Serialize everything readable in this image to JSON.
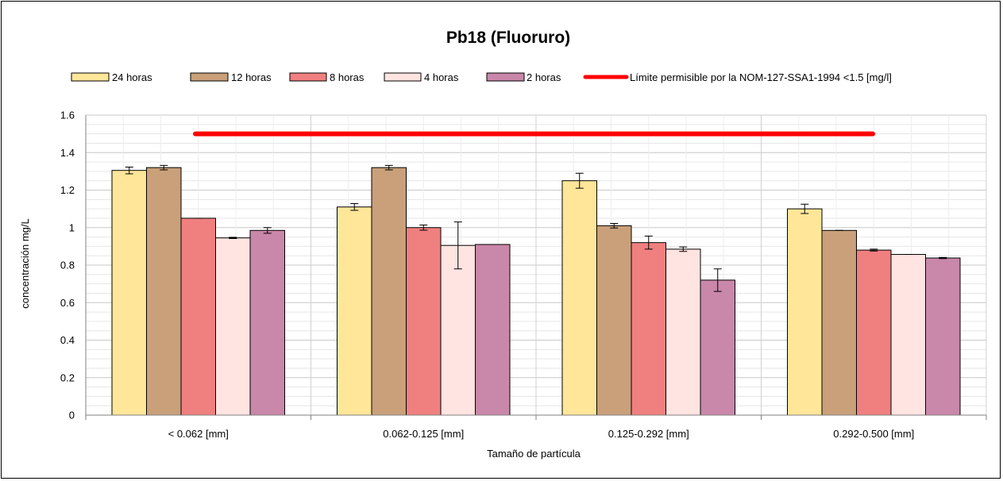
{
  "chart_data": {
    "type": "bar",
    "title": "Pb18 (Fluoruro)",
    "xlabel": "Tamaño de partícula",
    "ylabel": "concentración mg/L",
    "ylim": [
      0,
      1.6
    ],
    "yticks": [
      "0",
      "0.2",
      "0.4",
      "0.6",
      "0.8",
      "1",
      "1.2",
      "1.4",
      "1.6"
    ],
    "grid": true,
    "legend_position": "top",
    "categories": [
      "< 0.062 [mm]",
      "0.062-0.125 [mm]",
      "0.125-0.292 [mm]",
      "0.292-0.500 [mm]"
    ],
    "series": [
      {
        "name": "24 horas",
        "color": "#FFE699",
        "values": [
          1.305,
          1.11,
          1.25,
          1.1
        ],
        "errors": [
          0.018,
          0.018,
          0.04,
          0.025
        ]
      },
      {
        "name": "12 horas",
        "color": "#C9A07A",
        "values": [
          1.32,
          1.32,
          1.01,
          0.985
        ],
        "errors": [
          0.012,
          0.012,
          0.012,
          0.0
        ]
      },
      {
        "name": "8 horas",
        "color": "#F08080",
        "values": [
          1.05,
          1.0,
          0.92,
          0.88
        ],
        "errors": [
          0.0,
          0.014,
          0.035,
          0.005
        ]
      },
      {
        "name": "4 horas",
        "color": "#FFE4E1",
        "values": [
          0.945,
          0.905,
          0.885,
          0.857
        ],
        "errors": [
          0.003,
          0.125,
          0.012,
          0.0
        ]
      },
      {
        "name": "2 horas",
        "color": "#C987AA",
        "values": [
          0.985,
          0.91,
          0.72,
          0.838
        ],
        "errors": [
          0.015,
          0.0,
          0.06,
          0.003
        ]
      }
    ],
    "reference_line": {
      "name": "Límite permisible por la NOM-127-SSA1-1994 <1.5 [mg/l]",
      "value": 1.5,
      "color": "#FF0000"
    }
  }
}
